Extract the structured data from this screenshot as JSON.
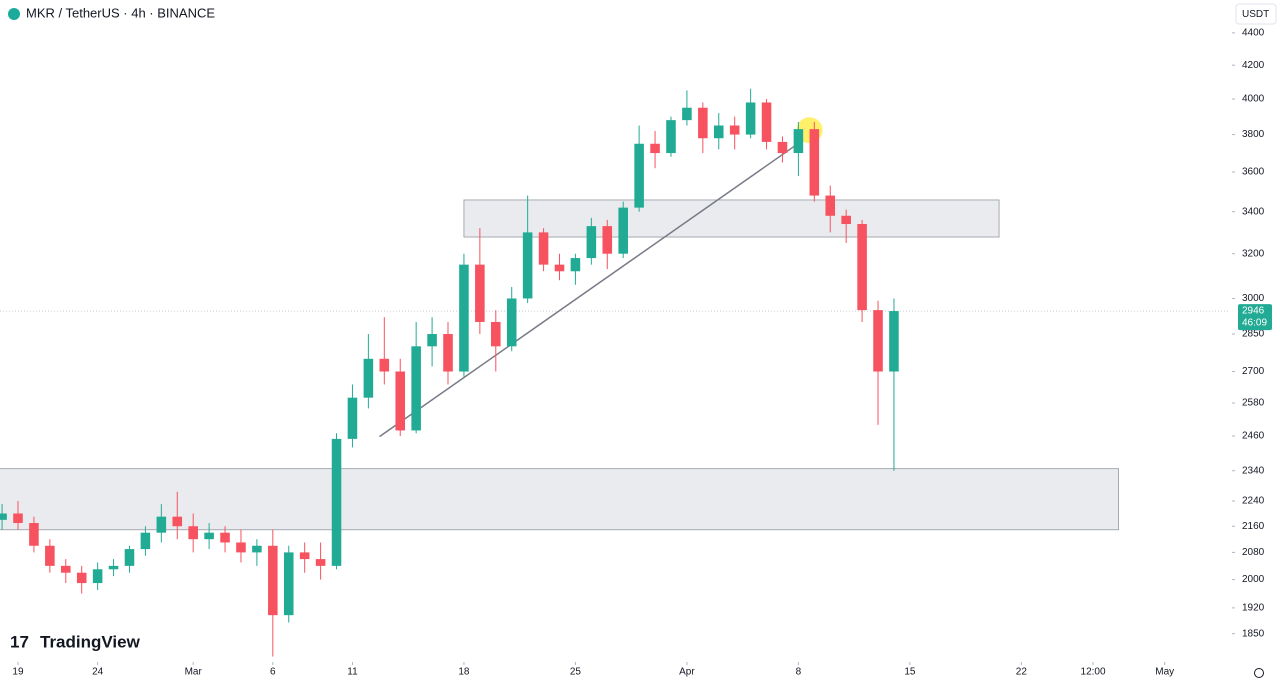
{
  "chart_data": {
    "type": "candlestick",
    "title": "MKR / TetherUS · 4h · BINANCE",
    "currency": "USDT",
    "watermark": "TradingView",
    "log_scale": true,
    "up_color": "#22ab94",
    "down_color": "#f7525f",
    "x": [
      -1,
      0,
      1,
      2,
      3,
      4,
      5,
      6,
      7,
      8,
      9,
      10,
      11,
      12,
      13,
      14,
      15,
      16,
      17,
      18,
      19,
      20,
      21,
      22,
      23,
      24,
      25,
      26,
      27,
      28,
      29,
      30,
      31,
      32,
      33,
      34,
      35,
      36,
      37,
      38,
      39,
      40,
      41,
      42,
      43,
      44,
      45,
      46,
      47,
      48,
      49,
      50,
      51,
      52,
      53,
      54,
      55
    ],
    "open": [
      2180,
      2200,
      2170,
      2100,
      2040,
      2020,
      1990,
      2030,
      2040,
      2090,
      2140,
      2190,
      2160,
      2120,
      2140,
      2110,
      2080,
      2100,
      1900,
      2080,
      2060,
      2040,
      2450,
      2600,
      2750,
      2700,
      2480,
      2800,
      2850,
      2700,
      3150,
      2900,
      2800,
      3000,
      3300,
      3150,
      3120,
      3180,
      3330,
      3200,
      3420,
      3750,
      3700,
      3880,
      3950,
      3780,
      3850,
      3800,
      3980,
      3760,
      3700,
      3830,
      3480,
      3380,
      3340,
      2950,
      2700
    ],
    "high": [
      2230,
      2240,
      2190,
      2120,
      2060,
      2040,
      2050,
      2060,
      2100,
      2160,
      2230,
      2270,
      2200,
      2170,
      2160,
      2150,
      2120,
      2150,
      2100,
      2110,
      2110,
      2470,
      2650,
      2850,
      2920,
      2750,
      2900,
      2920,
      2900,
      3200,
      3320,
      2950,
      3050,
      3480,
      3320,
      3200,
      3200,
      3370,
      3360,
      3450,
      3850,
      3820,
      3900,
      4050,
      3980,
      3920,
      3900,
      4060,
      4000,
      3790,
      3870,
      3870,
      3530,
      3410,
      3360,
      2990,
      3000
    ],
    "low": [
      2150,
      2150,
      2080,
      2020,
      1990,
      1960,
      1970,
      2010,
      2020,
      2070,
      2110,
      2120,
      2080,
      2090,
      2080,
      2050,
      2040,
      1790,
      1880,
      2020,
      2000,
      2030,
      2420,
      2560,
      2650,
      2460,
      2470,
      2720,
      2650,
      2680,
      2850,
      2700,
      2780,
      2980,
      3120,
      3080,
      3060,
      3150,
      3130,
      3180,
      3400,
      3620,
      3680,
      3850,
      3700,
      3720,
      3720,
      3780,
      3720,
      3650,
      3580,
      3450,
      3300,
      3250,
      2900,
      2500,
      2340
    ],
    "close": [
      2200,
      2170,
      2100,
      2040,
      2020,
      1990,
      2030,
      2040,
      2090,
      2140,
      2190,
      2160,
      2120,
      2140,
      2110,
      2080,
      2100,
      1900,
      2080,
      2060,
      2040,
      2450,
      2600,
      2750,
      2700,
      2480,
      2800,
      2850,
      2700,
      3150,
      2900,
      2800,
      3000,
      3300,
      3150,
      3120,
      3180,
      3330,
      3200,
      3420,
      3750,
      3700,
      3880,
      3950,
      3780,
      3850,
      3800,
      3980,
      3760,
      3700,
      3830,
      3480,
      3380,
      3340,
      2950,
      2700,
      2946
    ],
    "xlim": [
      -1.13,
      76.1
    ],
    "ylim": [
      1781,
      4614
    ],
    "xticks": [
      {
        "value": 0,
        "label": "19"
      },
      {
        "value": 5,
        "label": "24"
      },
      {
        "value": 11,
        "label": "Mar"
      },
      {
        "value": 16,
        "label": "6"
      },
      {
        "value": 21,
        "label": "11"
      },
      {
        "value": 28,
        "label": "18"
      },
      {
        "value": 35,
        "label": "25"
      },
      {
        "value": 42,
        "label": "Apr"
      },
      {
        "value": 49,
        "label": "8"
      },
      {
        "value": 56,
        "label": "15"
      },
      {
        "value": 63,
        "label": "22"
      },
      {
        "value": 67.5,
        "label": "12:00"
      },
      {
        "value": 72,
        "label": "May"
      }
    ],
    "yticks": [
      1850,
      1920,
      2000,
      2080,
      2160,
      2240,
      2340,
      2460,
      2580,
      2700,
      2850,
      3000,
      3200,
      3400,
      3600,
      3800,
      4000,
      4200,
      4400
    ],
    "last_price": 2946,
    "countdown": "46:09",
    "zones": [
      {
        "x": [
          28,
          61.6
        ],
        "y": [
          3278,
          3458
        ]
      },
      {
        "x": [
          -1.2,
          69.1
        ],
        "y": [
          2149,
          2347
        ]
      }
    ],
    "trendline": {
      "x": [
        22.7,
        49.3
      ],
      "y": [
        2458,
        3770
      ]
    },
    "marker": {
      "x": 49.7,
      "y": 3824
    }
  }
}
